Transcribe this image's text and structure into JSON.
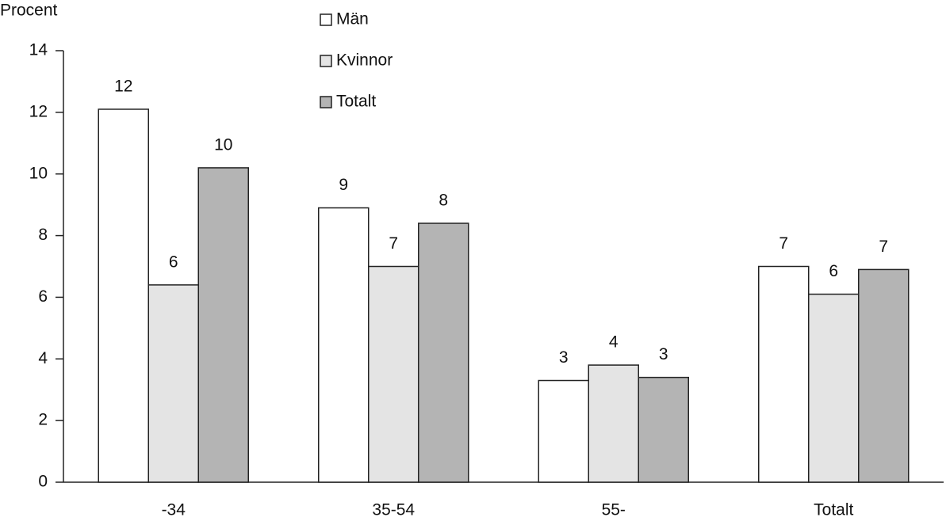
{
  "chart_data": {
    "type": "bar",
    "y_label": "Procent",
    "categories": [
      "-34",
      "35-54",
      "55-",
      "Totalt"
    ],
    "series": [
      {
        "name": "Män",
        "color": "#ffffff",
        "values": [
          12.1,
          8.9,
          3.3,
          7.0
        ],
        "value_labels": [
          "12",
          "9",
          "3",
          "7"
        ]
      },
      {
        "name": "Kvinnor",
        "color": "#e4e4e4",
        "values": [
          6.4,
          7.0,
          3.8,
          6.1
        ],
        "value_labels": [
          "6",
          "7",
          "4",
          "6"
        ]
      },
      {
        "name": "Totalt",
        "color": "#b4b4b4",
        "values": [
          10.2,
          8.4,
          3.4,
          6.9
        ],
        "value_labels": [
          "10",
          "8",
          "3",
          "7"
        ]
      }
    ],
    "ylim": [
      0,
      14
    ],
    "yticks": [
      0,
      2,
      4,
      6,
      8,
      10,
      12,
      14
    ],
    "grid": false
  }
}
